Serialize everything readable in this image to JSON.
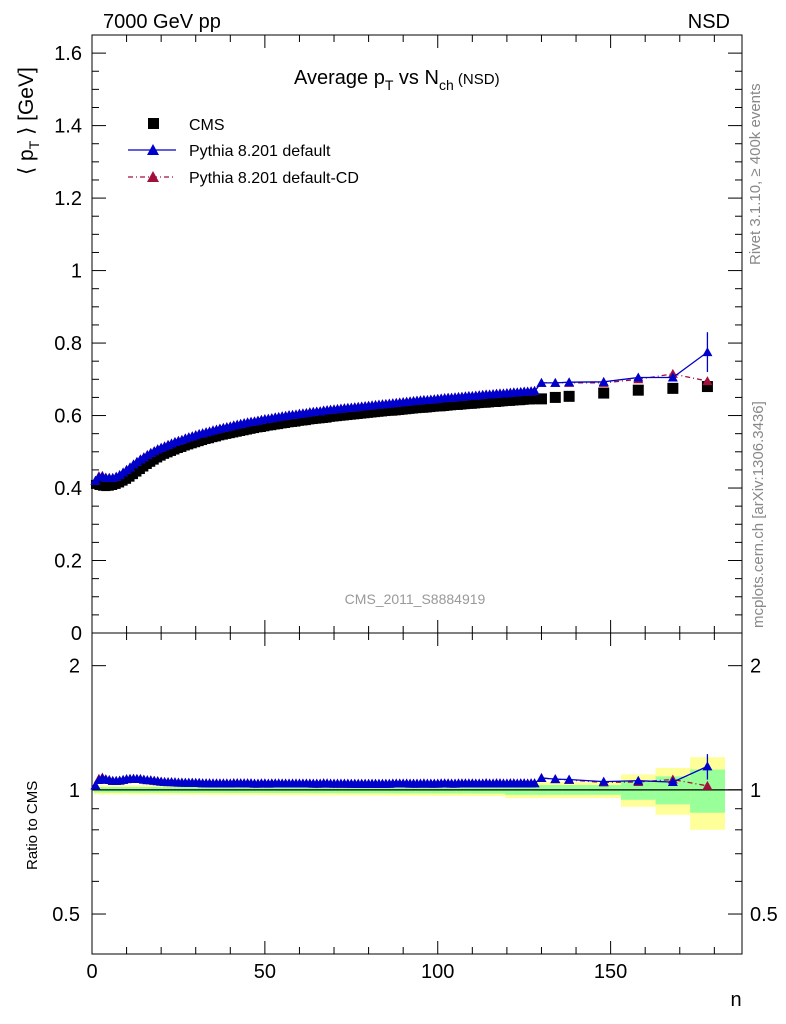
{
  "header": {
    "left": "7000 GeV pp",
    "right": "NSD"
  },
  "side": {
    "rivet": "Rivet 3.1.10, ≥ 400k events",
    "mcplots": "mcplots.cern.ch [arXiv:1306.3436]"
  },
  "chart_data": {
    "type": "line",
    "title": "Average p_T vs N_ch (NSD)",
    "ylabel": "⟨ p_T ⟩ [GeV]",
    "xlabel": "n",
    "ratio_ylabel": "Ratio to CMS",
    "analysis_id": "CMS_2011_S8884919",
    "xlim": [
      0,
      188
    ],
    "ylim": [
      0,
      1.65
    ],
    "ratio_ylim": [
      0.4,
      2.4
    ],
    "x_ticks": [
      "0",
      "50",
      "100",
      "150"
    ],
    "y_ticks": [
      "0",
      "0.2",
      "0.4",
      "0.6",
      "0.8",
      "1",
      "1.2",
      "1.4",
      "1.6"
    ],
    "ratio_ticks": [
      "0.5",
      "1",
      "2"
    ],
    "legend": [
      "CMS",
      "Pythia 8.201 default",
      "Pythia 8.201 default-CD"
    ],
    "colors": {
      "cms": "#000000",
      "default": "#0000cc",
      "cd": "#a0103a",
      "band_inner": "#99ff99",
      "band_outer": "#ffff99"
    },
    "x": [
      1,
      2,
      3,
      4,
      5,
      6,
      7,
      8,
      9,
      10,
      11,
      12,
      13,
      14,
      15,
      16,
      17,
      18,
      19,
      20,
      21,
      22,
      23,
      24,
      25,
      26,
      27,
      28,
      29,
      30,
      31,
      32,
      33,
      34,
      35,
      36,
      37,
      38,
      39,
      40,
      41,
      42,
      43,
      44,
      45,
      46,
      47,
      48,
      49,
      50,
      51,
      52,
      53,
      54,
      55,
      56,
      57,
      58,
      59,
      60,
      61,
      62,
      63,
      64,
      65,
      66,
      67,
      68,
      69,
      70,
      71,
      72,
      73,
      74,
      75,
      76,
      77,
      78,
      79,
      80,
      81,
      82,
      83,
      84,
      85,
      86,
      87,
      88,
      89,
      90,
      91,
      92,
      93,
      94,
      95,
      96,
      97,
      98,
      99,
      100,
      101,
      102,
      103,
      104,
      105,
      106,
      107,
      108,
      109,
      110,
      111,
      112,
      113,
      114,
      115,
      116,
      117,
      118,
      119,
      120,
      121,
      122,
      123,
      124,
      125,
      126,
      127,
      128,
      130,
      134,
      138,
      148,
      158,
      168,
      178
    ],
    "series": [
      {
        "name": "CMS",
        "values": [
          0.41,
          0.407,
          0.405,
          0.404,
          0.405,
          0.407,
          0.41,
          0.414,
          0.419,
          0.424,
          0.43,
          0.437,
          0.444,
          0.451,
          0.458,
          0.465,
          0.471,
          0.477,
          0.483,
          0.488,
          0.493,
          0.497,
          0.501,
          0.505,
          0.509,
          0.512,
          0.516,
          0.519,
          0.522,
          0.525,
          0.528,
          0.531,
          0.534,
          0.536,
          0.539,
          0.541,
          0.544,
          0.546,
          0.548,
          0.55,
          0.552,
          0.554,
          0.556,
          0.558,
          0.56,
          0.562,
          0.564,
          0.566,
          0.567,
          0.569,
          0.571,
          0.572,
          0.574,
          0.575,
          0.577,
          0.578,
          0.58,
          0.581,
          0.582,
          0.584,
          0.585,
          0.586,
          0.588,
          0.589,
          0.59,
          0.591,
          0.592,
          0.593,
          0.595,
          0.596,
          0.597,
          0.598,
          0.599,
          0.6,
          0.601,
          0.602,
          0.603,
          0.604,
          0.605,
          0.606,
          0.607,
          0.608,
          0.609,
          0.61,
          0.611,
          0.612,
          0.612,
          0.613,
          0.614,
          0.615,
          0.616,
          0.617,
          0.618,
          0.619,
          0.62,
          0.62,
          0.621,
          0.622,
          0.623,
          0.624,
          0.624,
          0.625,
          0.626,
          0.627,
          0.628,
          0.628,
          0.629,
          0.63,
          0.631,
          0.631,
          0.632,
          0.633,
          0.634,
          0.634,
          0.635,
          0.636,
          0.636,
          0.637,
          0.638,
          0.639,
          0.639,
          0.64,
          0.641,
          0.641,
          0.642,
          0.643,
          0.643,
          0.644,
          0.646,
          0.65,
          0.653,
          0.662,
          0.67,
          0.675,
          0.68
        ]
      },
      {
        "name": "Pythia 8.201 default",
        "values": [
          0.42,
          0.43,
          0.432,
          0.428,
          0.428,
          0.428,
          0.431,
          0.436,
          0.443,
          0.45,
          0.457,
          0.465,
          0.472,
          0.479,
          0.485,
          0.491,
          0.497,
          0.502,
          0.507,
          0.511,
          0.515,
          0.519,
          0.523,
          0.527,
          0.53,
          0.533,
          0.537,
          0.54,
          0.543,
          0.546,
          0.549,
          0.551,
          0.554,
          0.556,
          0.559,
          0.561,
          0.564,
          0.566,
          0.568,
          0.57,
          0.573,
          0.575,
          0.577,
          0.579,
          0.581,
          0.583,
          0.584,
          0.586,
          0.588,
          0.59,
          0.591,
          0.593,
          0.595,
          0.596,
          0.598,
          0.599,
          0.601,
          0.602,
          0.603,
          0.605,
          0.606,
          0.607,
          0.609,
          0.61,
          0.611,
          0.612,
          0.614,
          0.615,
          0.616,
          0.617,
          0.618,
          0.619,
          0.62,
          0.621,
          0.622,
          0.623,
          0.624,
          0.625,
          0.626,
          0.627,
          0.628,
          0.629,
          0.63,
          0.631,
          0.632,
          0.633,
          0.634,
          0.635,
          0.636,
          0.637,
          0.638,
          0.639,
          0.64,
          0.641,
          0.642,
          0.643,
          0.643,
          0.644,
          0.645,
          0.646,
          0.647,
          0.648,
          0.649,
          0.649,
          0.65,
          0.651,
          0.652,
          0.653,
          0.654,
          0.654,
          0.655,
          0.656,
          0.657,
          0.658,
          0.658,
          0.659,
          0.66,
          0.661,
          0.661,
          0.662,
          0.663,
          0.664,
          0.664,
          0.665,
          0.666,
          0.666,
          0.667,
          0.668,
          0.69,
          0.69,
          0.692,
          0.693,
          0.705,
          0.705,
          0.775
        ]
      },
      {
        "name": "Pythia 8.201 default-CD",
        "values": [
          0.42,
          0.433,
          0.434,
          0.429,
          0.428,
          0.428,
          0.431,
          0.436,
          0.443,
          0.45,
          0.457,
          0.465,
          0.472,
          0.479,
          0.485,
          0.491,
          0.497,
          0.502,
          0.507,
          0.511,
          0.515,
          0.519,
          0.523,
          0.527,
          0.53,
          0.533,
          0.537,
          0.54,
          0.543,
          0.546,
          0.549,
          0.551,
          0.554,
          0.556,
          0.559,
          0.561,
          0.564,
          0.566,
          0.568,
          0.57,
          0.573,
          0.575,
          0.577,
          0.579,
          0.581,
          0.583,
          0.584,
          0.586,
          0.588,
          0.59,
          0.591,
          0.593,
          0.595,
          0.596,
          0.598,
          0.599,
          0.601,
          0.602,
          0.603,
          0.605,
          0.606,
          0.607,
          0.609,
          0.61,
          0.611,
          0.612,
          0.614,
          0.615,
          0.616,
          0.617,
          0.618,
          0.619,
          0.62,
          0.621,
          0.622,
          0.623,
          0.624,
          0.625,
          0.626,
          0.627,
          0.628,
          0.629,
          0.63,
          0.631,
          0.632,
          0.633,
          0.634,
          0.635,
          0.636,
          0.637,
          0.638,
          0.639,
          0.64,
          0.641,
          0.642,
          0.643,
          0.643,
          0.644,
          0.645,
          0.646,
          0.647,
          0.648,
          0.649,
          0.649,
          0.65,
          0.651,
          0.652,
          0.653,
          0.654,
          0.654,
          0.655,
          0.656,
          0.657,
          0.658,
          0.658,
          0.659,
          0.66,
          0.661,
          0.661,
          0.662,
          0.663,
          0.664,
          0.664,
          0.665,
          0.666,
          0.666,
          0.667,
          0.668,
          0.69,
          0.69,
          0.69,
          0.69,
          0.7,
          0.715,
          0.695
        ]
      }
    ]
  }
}
